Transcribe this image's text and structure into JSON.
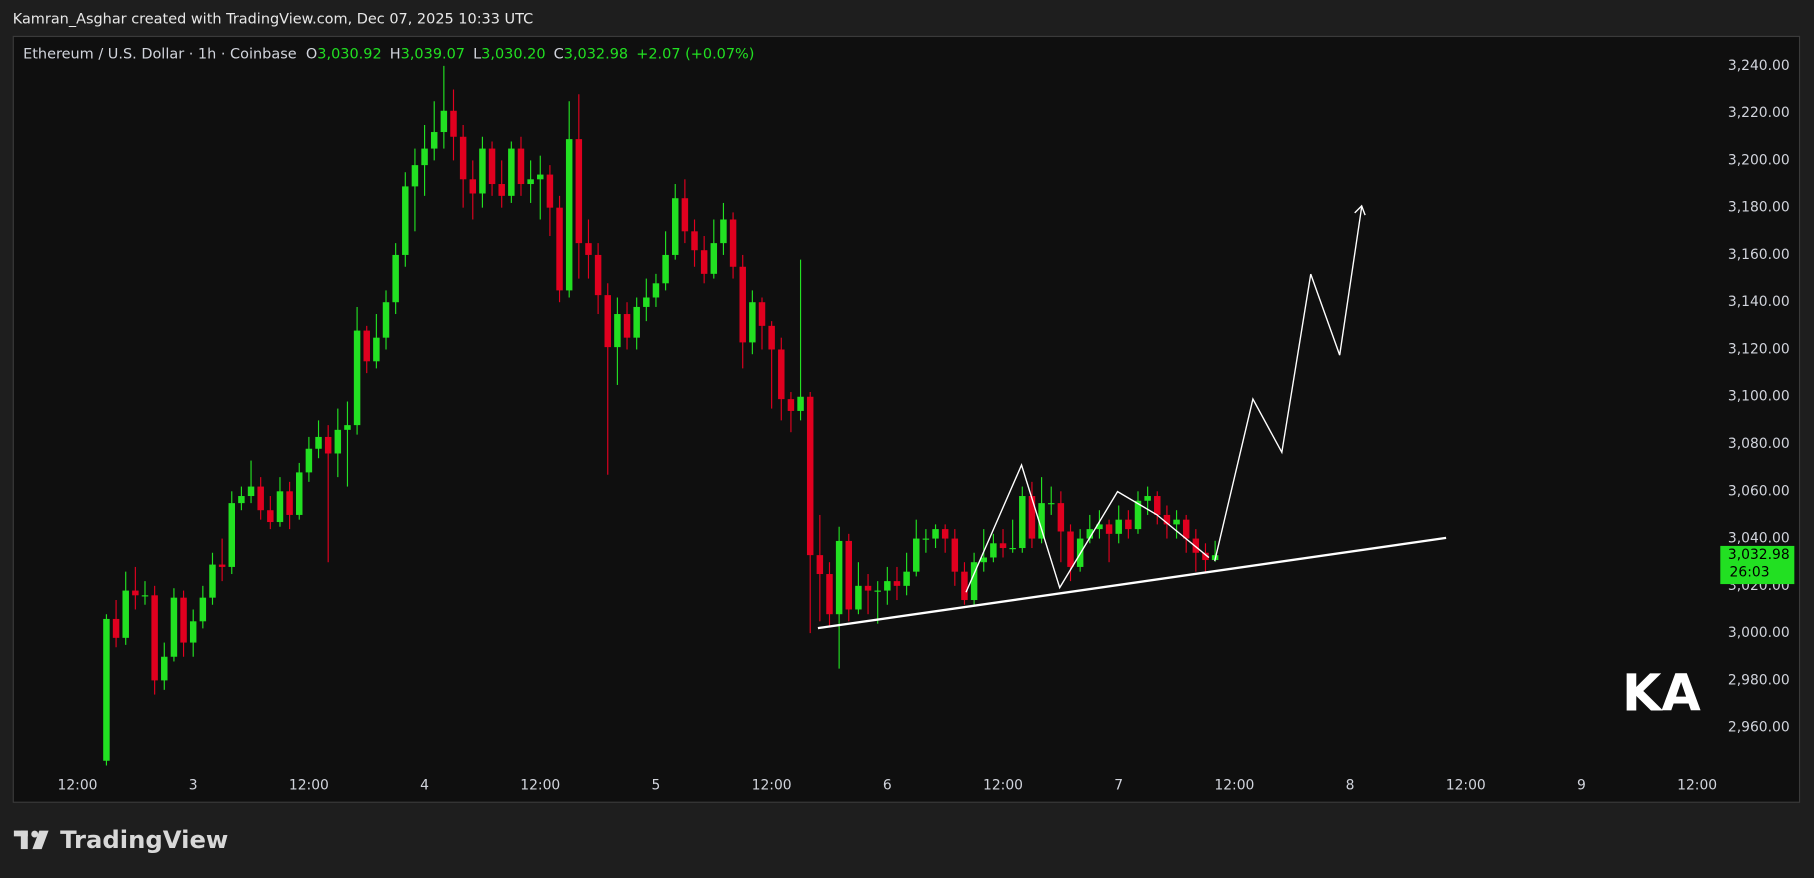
{
  "header": {
    "credit": "Kamran_Asghar created with TradingView.com, Dec 07, 2025 10:33 UTC"
  },
  "legend": {
    "symbol": "Ethereum / U.S. Dollar · 1h · Coinbase",
    "open_label": "O",
    "open": "3,030.92",
    "high_label": "H",
    "high": "3,039.07",
    "low_label": "L",
    "low": "3,030.20",
    "close_label": "C",
    "close": "3,032.98",
    "change": "+2.07 (+0.07%)"
  },
  "footer": {
    "brand": "TradingView"
  },
  "chart_data": {
    "type": "candlestick",
    "up_color": "#22e022",
    "down_color": "#e0001f",
    "grid": false,
    "ylim": [
      2942.4,
      3252.2
    ],
    "yticks": [
      {
        "value": 2960,
        "label": "2,960.00"
      },
      {
        "value": 2980,
        "label": "2,980.00"
      },
      {
        "value": 3000,
        "label": "3,000.00"
      },
      {
        "value": 3020,
        "label": "3,020.00"
      },
      {
        "value": 3040,
        "label": "3,040.00"
      },
      {
        "value": 3060,
        "label": "3,060.00"
      },
      {
        "value": 3080,
        "label": "3,080.00"
      },
      {
        "value": 3100,
        "label": "3,100.00"
      },
      {
        "value": 3120,
        "label": "3,120.00"
      },
      {
        "value": 3140,
        "label": "3,140.00"
      },
      {
        "value": 3160,
        "label": "3,160.00"
      },
      {
        "value": 3180,
        "label": "3,180.00"
      },
      {
        "value": 3200,
        "label": "3,200.00"
      },
      {
        "value": 3220,
        "label": "3,220.00"
      },
      {
        "value": 3240,
        "label": "3,240.00"
      }
    ],
    "xtick_labels": [
      "12:00",
      "3",
      "12:00",
      "4",
      "12:00",
      "5",
      "12:00",
      "6",
      "12:00",
      "7",
      "12:00",
      "8",
      "12:00",
      "9",
      "12:00"
    ],
    "last_price_label": "3,032.98",
    "countdown": "26:03",
    "open": [
      2946,
      3006,
      2998,
      3018,
      3016,
      3016,
      2980,
      2990,
      3015,
      2996,
      3005,
      3015,
      3029,
      3028,
      3055,
      3058,
      3062,
      3052,
      3047,
      3060,
      3050,
      3068,
      3078,
      3083,
      3076,
      3086,
      3088,
      3128,
      3115,
      3125,
      3140,
      3160,
      3189,
      3198,
      3205,
      3212,
      3221,
      3210,
      3192,
      3186,
      3205,
      3190,
      3185,
      3205,
      3190,
      3192,
      3194,
      3180,
      3145,
      3209,
      3165,
      3160,
      3143,
      3121,
      3135,
      3125,
      3138,
      3142,
      3148,
      3160,
      3184,
      3170,
      3162,
      3152,
      3165,
      3175,
      3155,
      3123,
      3140,
      3130,
      3120,
      3099,
      3094,
      3100,
      3033,
      3025,
      3008,
      3039,
      3010,
      3020,
      3018,
      3018,
      3022,
      3020,
      3026,
      3040,
      3040,
      3044,
      3040,
      3026,
      3014,
      3030,
      3032,
      3038,
      3036,
      3036,
      3058,
      3040,
      3055,
      3055,
      3043,
      3028,
      3040,
      3044,
      3046,
      3042,
      3048,
      3044,
      3056,
      3058,
      3050,
      3046,
      3048,
      3040,
      3034,
      3030.92
    ],
    "high": [
      3008,
      3014,
      3026,
      3028,
      3022,
      3020,
      2996,
      3019,
      3018,
      3010,
      3020,
      3034,
      3040,
      3060,
      3062,
      3073,
      3066,
      3058,
      3066,
      3064,
      3072,
      3083,
      3090,
      3088,
      3095,
      3098,
      3138,
      3130,
      3135,
      3145,
      3165,
      3195,
      3205,
      3215,
      3225,
      3240,
      3230,
      3215,
      3200,
      3210,
      3208,
      3200,
      3208,
      3210,
      3200,
      3202,
      3198,
      3185,
      3225,
      3228,
      3175,
      3165,
      3148,
      3142,
      3140,
      3142,
      3150,
      3152,
      3170,
      3190,
      3192,
      3175,
      3168,
      3175,
      3182,
      3178,
      3160,
      3145,
      3142,
      3132,
      3125,
      3102,
      3158,
      3102,
      3050,
      3030,
      3045,
      3042,
      3030,
      3025,
      3022,
      3028,
      3028,
      3034,
      3048,
      3044,
      3046,
      3046,
      3044,
      3030,
      3034,
      3044,
      3042,
      3044,
      3048,
      3062,
      3064,
      3066,
      3062,
      3060,
      3046,
      3044,
      3050,
      3052,
      3048,
      3054,
      3052,
      3060,
      3062,
      3060,
      3054,
      3052,
      3050,
      3044,
      3038,
      3039.07
    ],
    "low": [
      2944,
      2994,
      2995,
      3010,
      3012,
      2974,
      2976,
      2988,
      2990,
      2990,
      3002,
      3012,
      3022,
      3025,
      3052,
      3055,
      3048,
      3044,
      3045,
      3044,
      3048,
      3064,
      3074,
      3030,
      3066,
      3062,
      3084,
      3110,
      3112,
      3120,
      3135,
      3155,
      3170,
      3185,
      3200,
      3205,
      3200,
      3180,
      3175,
      3180,
      3185,
      3180,
      3182,
      3185,
      3182,
      3175,
      3168,
      3140,
      3142,
      3150,
      3150,
      3135,
      3067,
      3105,
      3120,
      3120,
      3132,
      3138,
      3145,
      3158,
      3165,
      3155,
      3148,
      3150,
      3160,
      3150,
      3112,
      3118,
      3120,
      3095,
      3090,
      3085,
      3090,
      3000,
      3005,
      3003,
      2985,
      3005,
      3008,
      3008,
      3004,
      3012,
      3014,
      3016,
      3024,
      3034,
      3036,
      3034,
      3020,
      3012,
      3012,
      3026,
      3030,
      3032,
      3034,
      3034,
      3036,
      3038,
      3050,
      3030,
      3022,
      3026,
      3038,
      3040,
      3030,
      3038,
      3040,
      3042,
      3050,
      3046,
      3040,
      3040,
      3034,
      3026,
      3026,
      3030.2
    ],
    "close": [
      3006,
      2998,
      3018,
      3016,
      3016,
      2980,
      2990,
      3015,
      2996,
      3005,
      3015,
      3029,
      3028,
      3055,
      3058,
      3062,
      3052,
      3047,
      3060,
      3050,
      3068,
      3078,
      3083,
      3076,
      3086,
      3088,
      3128,
      3115,
      3125,
      3140,
      3160,
      3189,
      3198,
      3205,
      3212,
      3221,
      3210,
      3192,
      3186,
      3205,
      3190,
      3185,
      3205,
      3190,
      3192,
      3194,
      3180,
      3145,
      3209,
      3165,
      3160,
      3143,
      3121,
      3135,
      3125,
      3138,
      3142,
      3148,
      3160,
      3184,
      3170,
      3162,
      3152,
      3165,
      3175,
      3155,
      3123,
      3140,
      3130,
      3120,
      3099,
      3094,
      3100,
      3033,
      3025,
      3008,
      3039,
      3010,
      3020,
      3018,
      3018,
      3022,
      3020,
      3026,
      3040,
      3040,
      3044,
      3040,
      3026,
      3014,
      3030,
      3032,
      3038,
      3036,
      3036,
      3058,
      3040,
      3055,
      3055,
      3043,
      3028,
      3040,
      3044,
      3046,
      3042,
      3048,
      3044,
      3056,
      3058,
      3050,
      3046,
      3048,
      3040,
      3034,
      3030.92,
      3032.98
    ]
  }
}
